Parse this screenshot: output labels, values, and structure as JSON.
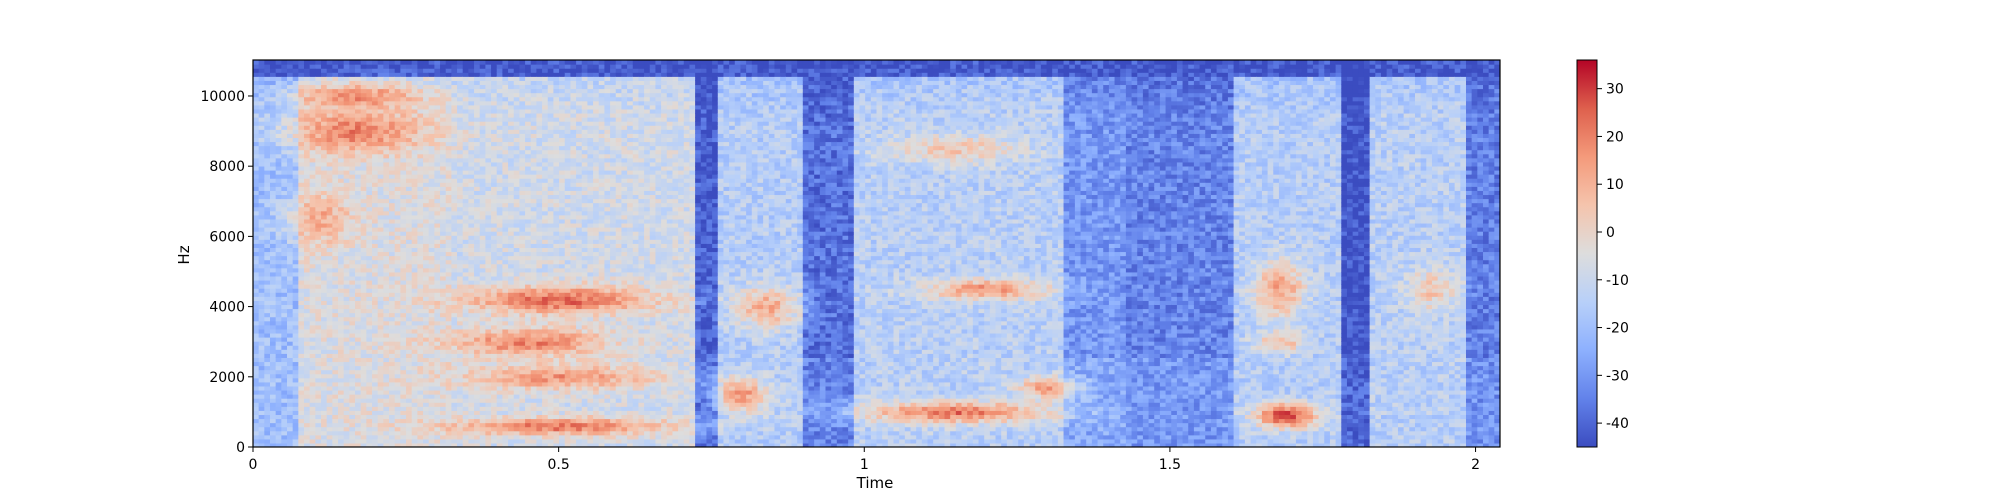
{
  "chart_data": {
    "type": "heatmap",
    "title": "",
    "xlabel": "Time",
    "ylabel": "Hz",
    "xlim": [
      0,
      2.04
    ],
    "ylim": [
      0,
      11025
    ],
    "x_ticks": [
      {
        "value": 0,
        "label": "0"
      },
      {
        "value": 0.5,
        "label": "0.5"
      },
      {
        "value": 1,
        "label": "1"
      },
      {
        "value": 1.5,
        "label": "1.5"
      },
      {
        "value": 2,
        "label": "2"
      }
    ],
    "y_ticks": [
      {
        "value": 0,
        "label": "0"
      },
      {
        "value": 2000,
        "label": "2000"
      },
      {
        "value": 4000,
        "label": "4000"
      },
      {
        "value": 6000,
        "label": "6000"
      },
      {
        "value": 8000,
        "label": "8000"
      },
      {
        "value": 10000,
        "label": "10000"
      }
    ],
    "colorbar": {
      "colormap": "coolwarm",
      "vmin": -45,
      "vmax": 36,
      "low_color": "#3b4cc0",
      "mid_color": "#dddddd",
      "high_color": "#b40426",
      "ticks": [
        {
          "value": 30,
          "label": "30"
        },
        {
          "value": 20,
          "label": "20"
        },
        {
          "value": 10,
          "label": "10"
        },
        {
          "value": 0,
          "label": "0"
        },
        {
          "value": -10,
          "label": "-10"
        },
        {
          "value": -20,
          "label": "-20"
        },
        {
          "value": -30,
          "label": "-30"
        },
        {
          "value": -40,
          "label": "-40"
        }
      ]
    },
    "time_segments": [
      {
        "start": 0.0,
        "end": 0.07,
        "level": -20
      },
      {
        "start": 0.07,
        "end": 0.32,
        "level": -5
      },
      {
        "start": 0.32,
        "end": 0.72,
        "level": -8
      },
      {
        "start": 0.72,
        "end": 0.76,
        "level": -42
      },
      {
        "start": 0.76,
        "end": 0.9,
        "level": -15
      },
      {
        "start": 0.9,
        "end": 0.98,
        "level": -38
      },
      {
        "start": 0.98,
        "end": 1.33,
        "level": -14
      },
      {
        "start": 1.33,
        "end": 1.43,
        "level": -30
      },
      {
        "start": 1.43,
        "end": 1.6,
        "level": -34
      },
      {
        "start": 1.6,
        "end": 1.78,
        "level": -15
      },
      {
        "start": 1.78,
        "end": 1.83,
        "level": -44
      },
      {
        "start": 1.83,
        "end": 1.98,
        "level": -14
      },
      {
        "start": 1.98,
        "end": 2.04,
        "level": -35
      }
    ],
    "hotspots": [
      {
        "t": 0.17,
        "f": 10000,
        "ft": 0.1,
        "ff": 350,
        "value": 18
      },
      {
        "t": 0.17,
        "f": 9000,
        "ft": 0.11,
        "ff": 600,
        "value": 20
      },
      {
        "t": 0.11,
        "f": 6500,
        "ft": 0.05,
        "ff": 700,
        "value": 12
      },
      {
        "t": 0.5,
        "f": 4200,
        "ft": 0.15,
        "ff": 400,
        "value": 24
      },
      {
        "t": 0.45,
        "f": 3000,
        "ft": 0.13,
        "ff": 400,
        "value": 20
      },
      {
        "t": 0.5,
        "f": 2000,
        "ft": 0.16,
        "ff": 350,
        "value": 16
      },
      {
        "t": 0.5,
        "f": 600,
        "ft": 0.18,
        "ff": 250,
        "value": 22
      },
      {
        "t": 0.84,
        "f": 4000,
        "ft": 0.05,
        "ff": 600,
        "value": 12
      },
      {
        "t": 0.8,
        "f": 1500,
        "ft": 0.04,
        "ff": 500,
        "value": 15
      },
      {
        "t": 1.2,
        "f": 4500,
        "ft": 0.1,
        "ff": 300,
        "value": 16
      },
      {
        "t": 1.15,
        "f": 1000,
        "ft": 0.15,
        "ff": 300,
        "value": 22
      },
      {
        "t": 1.15,
        "f": 8500,
        "ft": 0.1,
        "ff": 400,
        "value": 5
      },
      {
        "t": 1.3,
        "f": 1700,
        "ft": 0.05,
        "ff": 300,
        "value": 14
      },
      {
        "t": 1.69,
        "f": 900,
        "ft": 0.05,
        "ff": 350,
        "value": 30
      },
      {
        "t": 1.68,
        "f": 4500,
        "ft": 0.04,
        "ff": 800,
        "value": 14
      },
      {
        "t": 1.68,
        "f": 3000,
        "ft": 0.04,
        "ff": 300,
        "value": 8
      },
      {
        "t": 1.93,
        "f": 4500,
        "ft": 0.04,
        "ff": 600,
        "value": 5
      }
    ]
  }
}
